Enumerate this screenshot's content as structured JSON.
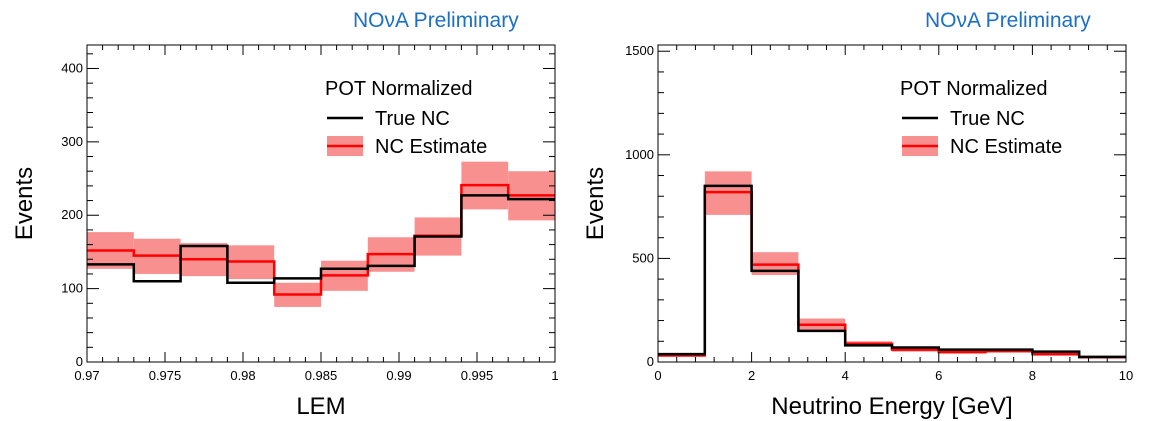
{
  "colors": {
    "true_nc": "#000000",
    "estimate": "#ff0000",
    "estimate_band": "#f89090",
    "watermark": "#1c6fc5"
  },
  "chart_data": [
    {
      "type": "step",
      "watermark": "NOνA Preliminary",
      "xlabel": "LEM",
      "ylabel": "Events",
      "xlim": [
        0.97,
        1.0
      ],
      "ylim": [
        0,
        432
      ],
      "xticks": [
        0.97,
        0.975,
        0.98,
        0.985,
        0.99,
        0.995,
        1.0
      ],
      "xtick_labels": [
        "0.97",
        "0.975",
        "0.98",
        "0.985",
        "0.99",
        "0.995",
        "1"
      ],
      "yticks": [
        0,
        100,
        200,
        300,
        400
      ],
      "ytick_labels": [
        "0",
        "100",
        "200",
        "300",
        "400"
      ],
      "legend": {
        "placement": "top-right",
        "title": "POT Normalized",
        "entries": [
          "True NC",
          "NC Estimate"
        ]
      },
      "bin_edges": [
        0.97,
        0.973,
        0.976,
        0.979,
        0.982,
        0.985,
        0.988,
        0.991,
        0.994,
        0.997,
        1.0
      ],
      "series": [
        {
          "name": "True NC",
          "values": [
            133,
            110,
            158,
            108,
            114,
            127,
            131,
            171,
            227,
            222
          ]
        },
        {
          "name": "NC Estimate",
          "values": [
            152,
            145,
            140,
            137,
            92,
            118,
            147,
            172,
            241,
            227
          ],
          "band_low": [
            127,
            120,
            117,
            113,
            75,
            97,
            123,
            145,
            208,
            193
          ],
          "band_high": [
            177,
            168,
            162,
            159,
            108,
            138,
            170,
            197,
            273,
            260
          ]
        }
      ]
    },
    {
      "type": "step",
      "watermark": "NOνA Preliminary",
      "xlabel": "Neutrino Energy [GeV]",
      "ylabel": "Events",
      "xlim": [
        0,
        10
      ],
      "ylim": [
        0,
        1530
      ],
      "xticks": [
        0,
        2,
        4,
        6,
        8,
        10
      ],
      "xtick_labels": [
        "0",
        "2",
        "4",
        "6",
        "8",
        "10"
      ],
      "yticks": [
        0,
        500,
        1000,
        1500
      ],
      "ytick_labels": [
        "0",
        "500",
        "1000",
        "1500"
      ],
      "legend": {
        "placement": "top-right",
        "title": "POT Normalized",
        "entries": [
          "True NC",
          "NC Estimate"
        ]
      },
      "bin_edges": [
        0,
        1,
        2,
        3,
        4,
        5,
        6,
        7,
        8,
        9,
        10
      ],
      "series": [
        {
          "name": "True NC",
          "values": [
            38,
            850,
            440,
            150,
            80,
            70,
            60,
            60,
            50,
            25
          ]
        },
        {
          "name": "NC Estimate",
          "values": [
            32,
            820,
            470,
            180,
            88,
            60,
            48,
            53,
            38,
            23
          ],
          "band_low": [
            25,
            710,
            420,
            150,
            75,
            50,
            40,
            45,
            30,
            18
          ],
          "band_high": [
            40,
            920,
            530,
            210,
            100,
            72,
            58,
            63,
            48,
            30
          ]
        }
      ]
    }
  ]
}
